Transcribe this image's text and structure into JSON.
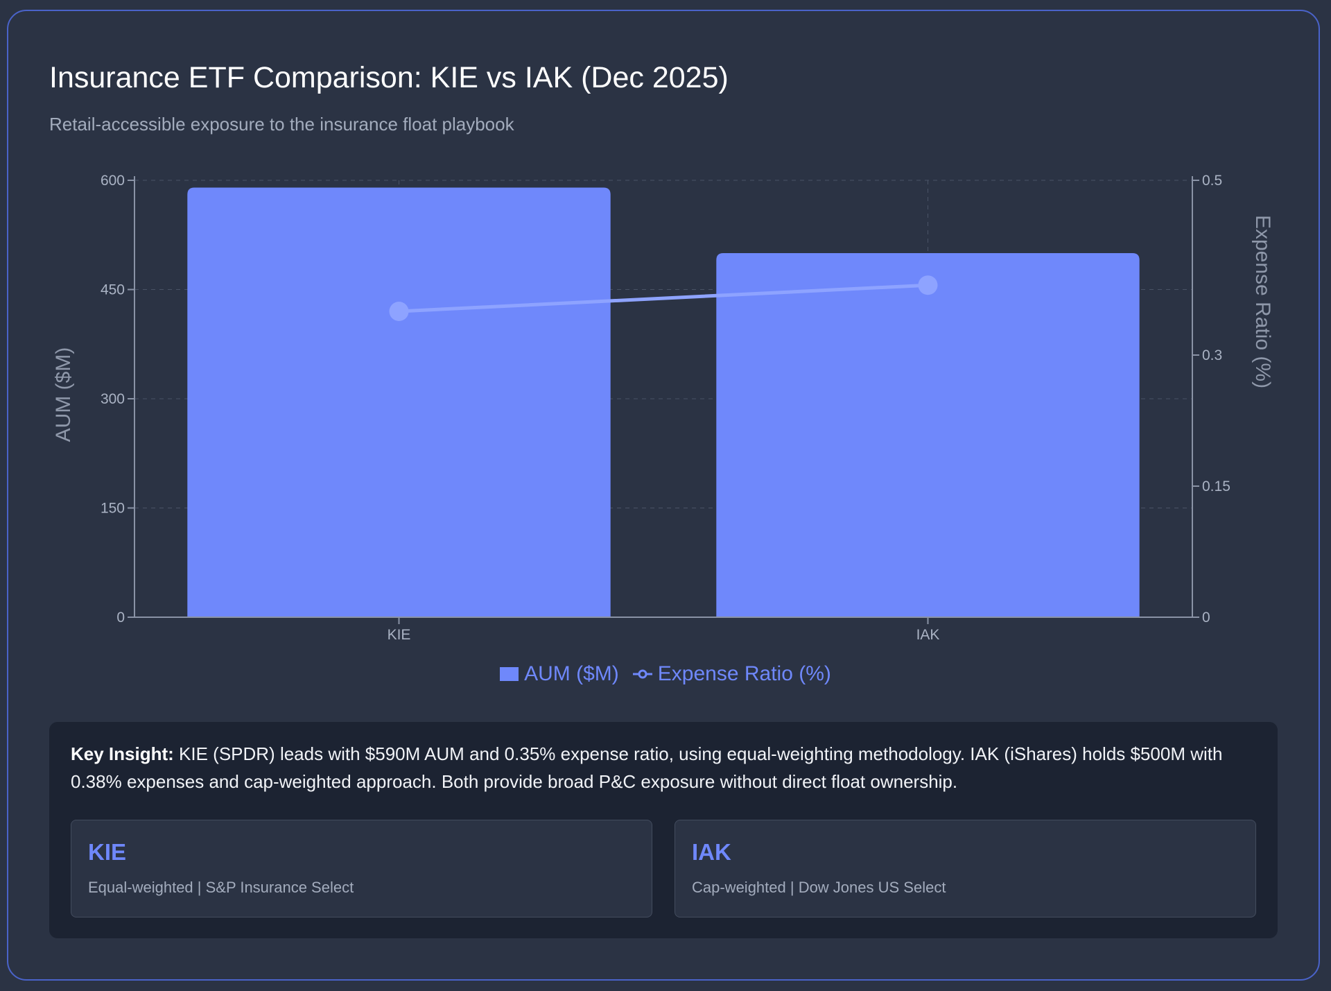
{
  "header": {
    "title": "Insurance ETF Comparison: KIE vs IAK (Dec 2025)",
    "subtitle": "Retail-accessible exposure to the insurance float playbook"
  },
  "chart_data": {
    "type": "bar",
    "categories": [
      "KIE",
      "IAK"
    ],
    "series": [
      {
        "name": "AUM ($M)",
        "type": "bar",
        "axis": "left",
        "values": [
          590,
          500
        ]
      },
      {
        "name": "Expense Ratio (%)",
        "type": "line",
        "axis": "right",
        "values": [
          0.35,
          0.38
        ]
      }
    ],
    "ylabel": "AUM ($M)",
    "y2label": "Expense Ratio (%)",
    "ylim": [
      0,
      600
    ],
    "y2lim": [
      0,
      0.5
    ],
    "yticks": [
      "0",
      "150",
      "300",
      "450",
      "600"
    ],
    "yticks_values": [
      0,
      150,
      300,
      450,
      600
    ],
    "y2ticks": [
      "0",
      "0.15",
      "0.3",
      "0.5"
    ],
    "y2ticks_values": [
      0,
      0.15,
      0.3,
      0.5
    ],
    "grid": true,
    "legend": "bottom-center"
  },
  "colors": {
    "accent": "#6f88fb",
    "line": "#8ea3ff",
    "background": "#2b3344",
    "panel": "#1c2332"
  },
  "legend": {
    "bar_label": "AUM ($M)",
    "line_label": "Expense Ratio (%)"
  },
  "insight": {
    "label": "Key Insight:",
    "text": "KIE (SPDR) leads with $590M AUM and 0.35% expense ratio, using equal-weighting methodology. IAK (iShares) holds $500M with 0.38% expenses and cap-weighted approach. Both provide broad P&C exposure without direct float ownership."
  },
  "funds": [
    {
      "ticker": "KIE",
      "description": "Equal-weighted | S&P Insurance Select"
    },
    {
      "ticker": "IAK",
      "description": "Cap-weighted | Dow Jones US Select"
    }
  ]
}
